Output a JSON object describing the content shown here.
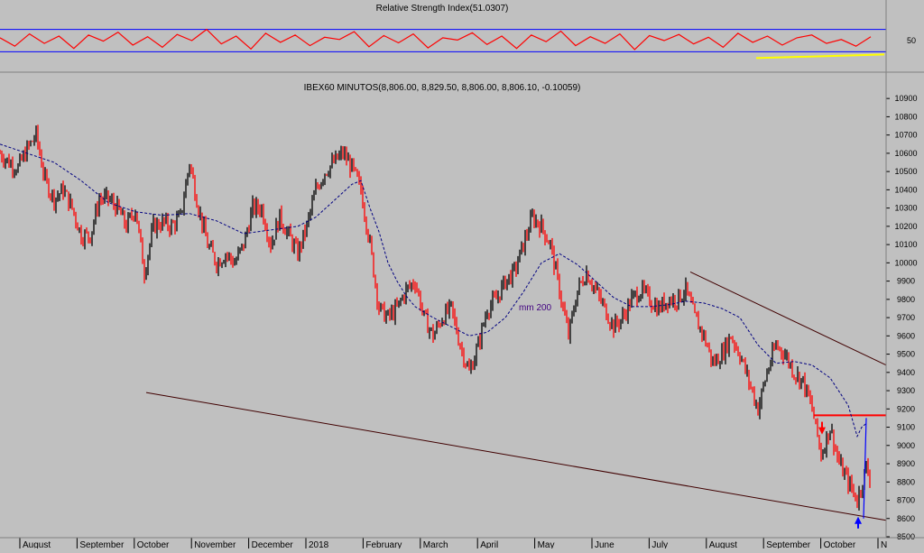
{
  "chart_data": [
    {
      "type": "line",
      "title": "Relative Strength Index(51.0307)",
      "ylim": [
        0,
        100
      ],
      "y_ticks": [
        50
      ],
      "reference_lines": [
        30,
        70
      ],
      "series": [
        {
          "values": [
            55,
            40,
            62,
            45,
            58,
            36,
            60,
            49,
            65,
            42,
            57,
            38,
            61,
            50,
            70,
            44,
            58,
            35,
            63,
            47,
            60,
            41,
            56,
            52,
            66,
            39,
            59,
            46,
            62,
            37,
            55,
            51,
            64,
            43,
            58,
            36,
            60,
            48,
            67,
            41,
            57,
            45,
            62,
            34,
            59,
            50,
            61,
            44,
            56,
            38,
            63,
            47,
            58,
            42,
            55,
            60,
            45,
            52,
            40,
            57
          ]
        }
      ],
      "colors": {
        "line": "#ff0000",
        "reference": "#0000ff",
        "support": "#ffff00"
      }
    },
    {
      "type": "line",
      "title": "IBEX60 MINUTOS(8,806.00, 8,829.50, 8,806.00, 8,806.10, -0.10059)",
      "x_tick_labels": [
        "August",
        "September",
        "October",
        "November",
        "December",
        "2018",
        "February",
        "March",
        "April",
        "May",
        "June",
        "July",
        "August",
        "September",
        "October",
        "N"
      ],
      "y_ticks": [
        8500,
        8600,
        8700,
        8800,
        8900,
        9000,
        9100,
        9200,
        9300,
        9400,
        9500,
        9600,
        9700,
        9800,
        9900,
        10000,
        10100,
        10200,
        10300,
        10400,
        10500,
        10600,
        10700,
        10800,
        10900
      ],
      "ylim": [
        8500,
        10970
      ],
      "series": [
        {
          "x": [
            0,
            10,
            20,
            30,
            40,
            50,
            60,
            70,
            80,
            90,
            100,
            110,
            120,
            130,
            140,
            150,
            160,
            170,
            180,
            190,
            200,
            210,
            220,
            230,
            240,
            250,
            260,
            270,
            280,
            290,
            300,
            310,
            320,
            330,
            340,
            350,
            360,
            370,
            380,
            390,
            400,
            410,
            420,
            430,
            440,
            450,
            460,
            470,
            480,
            490,
            500,
            510,
            520,
            530,
            540,
            550,
            560,
            570,
            580,
            590,
            600,
            610,
            620,
            630,
            640,
            650,
            660,
            670,
            680,
            690,
            700,
            710,
            720,
            730,
            740,
            750,
            760,
            770,
            780,
            790,
            800,
            810,
            820,
            830,
            840,
            850,
            860,
            870,
            880,
            890,
            900,
            910,
            920,
            930,
            940,
            950,
            960,
            965
          ],
          "values": [
            10600,
            10550,
            10520,
            10620,
            10700,
            10450,
            10350,
            10400,
            10300,
            10150,
            10150,
            10350,
            10350,
            10300,
            10200,
            10300,
            9950,
            10200,
            10220,
            10200,
            10250,
            10550,
            10300,
            10100,
            10000,
            10050,
            10000,
            10100,
            10300,
            10300,
            10100,
            10250,
            10150,
            10050,
            10200,
            10400,
            10500,
            10550,
            10600,
            10520,
            10400,
            10100,
            9750,
            9700,
            9750,
            9850,
            9900,
            9700,
            9600,
            9700,
            9750,
            9550,
            9400,
            9550,
            9750,
            9800,
            9900,
            9950,
            10100,
            10250,
            10200,
            10100,
            9850,
            9600,
            9850,
            9950,
            9850,
            9750,
            9650,
            9700,
            9800,
            9850,
            9800,
            9750,
            9800,
            9800,
            9850,
            9700,
            9600,
            9450,
            9500,
            9600,
            9500,
            9350,
            9200,
            9400,
            9550,
            9500,
            9400,
            9350,
            9200,
            8950,
            9100,
            8900,
            8800,
            8700,
            8880,
            8806
          ]
        },
        {
          "name": "mm 200",
          "x": [
            0,
            30,
            60,
            90,
            120,
            150,
            180,
            210,
            240,
            270,
            300,
            330,
            350,
            370,
            390,
            400,
            410,
            420,
            430,
            440,
            450,
            460,
            480,
            500,
            520,
            540,
            560,
            580,
            600,
            620,
            640,
            660,
            680,
            700,
            720,
            740,
            760,
            780,
            800,
            820,
            840,
            860,
            880,
            900,
            920,
            940,
            950,
            955,
            960
          ],
          "values": [
            10650,
            10600,
            10550,
            10450,
            10330,
            10280,
            10260,
            10270,
            10230,
            10160,
            10180,
            10200,
            10250,
            10340,
            10430,
            10450,
            10300,
            10170,
            10000,
            9900,
            9820,
            9760,
            9700,
            9650,
            9600,
            9620,
            9700,
            9840,
            10000,
            10050,
            9990,
            9900,
            9810,
            9760,
            9760,
            9770,
            9790,
            9780,
            9750,
            9700,
            9550,
            9450,
            9460,
            9440,
            9370,
            9220,
            9050,
            9100,
            9120
          ]
        }
      ],
      "trendlines": [
        {
          "points": [
            [
              162,
              9290
            ],
            [
              982,
              8590
            ]
          ]
        },
        {
          "points": [
            [
              765,
              9950
            ],
            [
              982,
              9440
            ]
          ]
        }
      ],
      "resistance_line": 9165,
      "annotations": [
        {
          "text": "mm 200",
          "x": 575,
          "y": 9740
        }
      ],
      "colors": {
        "price_up": "#000000",
        "price_down": "#ff0000",
        "ma": "#000080",
        "trend": "#400000",
        "resistance": "#ff0000",
        "arrow_down": "#ff0000",
        "arrow_up": "#0000ff",
        "spike": "#0000ff"
      }
    }
  ]
}
